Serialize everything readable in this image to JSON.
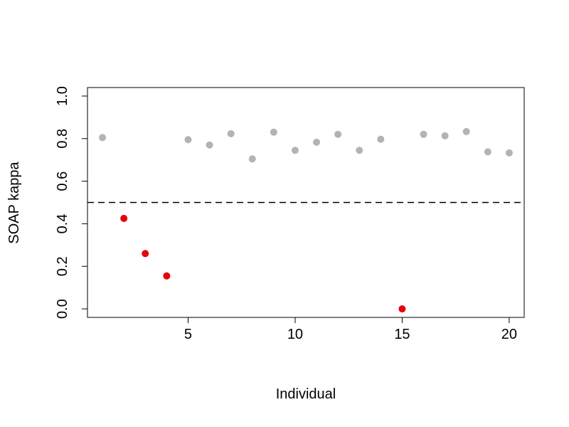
{
  "chart_data": {
    "type": "scatter",
    "title": "",
    "xlabel": "Individual",
    "ylabel": "SOAP kappa",
    "xlim": [
      0.3,
      20.7
    ],
    "ylim": [
      -0.04,
      1.04
    ],
    "xticks": [
      5,
      10,
      15,
      20
    ],
    "yticks": [
      0.0,
      0.2,
      0.4,
      0.6,
      0.8,
      1.0
    ],
    "xtick_labels": [
      "5",
      "10",
      "15",
      "20"
    ],
    "ytick_labels": [
      "0.0",
      "0.2",
      "0.4",
      "0.6",
      "0.8",
      "1.0"
    ],
    "grid": false,
    "legend": "none",
    "reference_line": {
      "y": 0.5,
      "style": "dashed",
      "color": "#000000"
    },
    "colors": {
      "above": "#b3b3b3",
      "below": "#e8000b"
    },
    "points": [
      {
        "x": 1,
        "y": 0.805,
        "color": "#b3b3b3"
      },
      {
        "x": 2,
        "y": 0.425,
        "color": "#e8000b"
      },
      {
        "x": 3,
        "y": 0.26,
        "color": "#e8000b"
      },
      {
        "x": 4,
        "y": 0.155,
        "color": "#e8000b"
      },
      {
        "x": 5,
        "y": 0.795,
        "color": "#b3b3b3"
      },
      {
        "x": 6,
        "y": 0.77,
        "color": "#b3b3b3"
      },
      {
        "x": 7,
        "y": 0.823,
        "color": "#b3b3b3"
      },
      {
        "x": 8,
        "y": 0.705,
        "color": "#b3b3b3"
      },
      {
        "x": 9,
        "y": 0.83,
        "color": "#b3b3b3"
      },
      {
        "x": 10,
        "y": 0.745,
        "color": "#b3b3b3"
      },
      {
        "x": 11,
        "y": 0.783,
        "color": "#b3b3b3"
      },
      {
        "x": 12,
        "y": 0.82,
        "color": "#b3b3b3"
      },
      {
        "x": 13,
        "y": 0.745,
        "color": "#b3b3b3"
      },
      {
        "x": 14,
        "y": 0.797,
        "color": "#b3b3b3"
      },
      {
        "x": 15,
        "y": 0.0,
        "color": "#e8000b"
      },
      {
        "x": 16,
        "y": 0.82,
        "color": "#b3b3b3"
      },
      {
        "x": 17,
        "y": 0.813,
        "color": "#b3b3b3"
      },
      {
        "x": 18,
        "y": 0.833,
        "color": "#b3b3b3"
      },
      {
        "x": 19,
        "y": 0.738,
        "color": "#b3b3b3"
      },
      {
        "x": 20,
        "y": 0.733,
        "color": "#b3b3b3"
      }
    ]
  }
}
